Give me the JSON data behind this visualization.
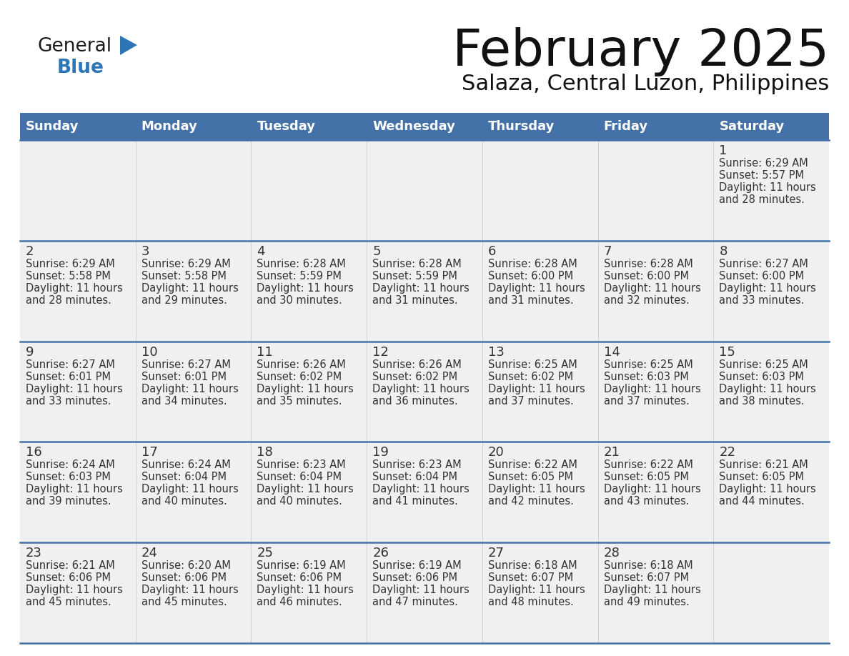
{
  "title": "February 2025",
  "subtitle": "Salaza, Central Luzon, Philippines",
  "days_of_week": [
    "Sunday",
    "Monday",
    "Tuesday",
    "Wednesday",
    "Thursday",
    "Friday",
    "Saturday"
  ],
  "header_bg": "#4472a8",
  "header_text": "#ffffff",
  "row_bg": "#f0f0f0",
  "separator_color": "#4472a8",
  "text_color": "#333333",
  "day_number_color": "#333333",
  "calendar_data": [
    {
      "day": 1,
      "col": 6,
      "row": 0,
      "sunrise": "6:29 AM",
      "sunset": "5:57 PM",
      "daylight": "11 hours and 28 minutes."
    },
    {
      "day": 2,
      "col": 0,
      "row": 1,
      "sunrise": "6:29 AM",
      "sunset": "5:58 PM",
      "daylight": "11 hours and 28 minutes."
    },
    {
      "day": 3,
      "col": 1,
      "row": 1,
      "sunrise": "6:29 AM",
      "sunset": "5:58 PM",
      "daylight": "11 hours and 29 minutes."
    },
    {
      "day": 4,
      "col": 2,
      "row": 1,
      "sunrise": "6:28 AM",
      "sunset": "5:59 PM",
      "daylight": "11 hours and 30 minutes."
    },
    {
      "day": 5,
      "col": 3,
      "row": 1,
      "sunrise": "6:28 AM",
      "sunset": "5:59 PM",
      "daylight": "11 hours and 31 minutes."
    },
    {
      "day": 6,
      "col": 4,
      "row": 1,
      "sunrise": "6:28 AM",
      "sunset": "6:00 PM",
      "daylight": "11 hours and 31 minutes."
    },
    {
      "day": 7,
      "col": 5,
      "row": 1,
      "sunrise": "6:28 AM",
      "sunset": "6:00 PM",
      "daylight": "11 hours and 32 minutes."
    },
    {
      "day": 8,
      "col": 6,
      "row": 1,
      "sunrise": "6:27 AM",
      "sunset": "6:00 PM",
      "daylight": "11 hours and 33 minutes."
    },
    {
      "day": 9,
      "col": 0,
      "row": 2,
      "sunrise": "6:27 AM",
      "sunset": "6:01 PM",
      "daylight": "11 hours and 33 minutes."
    },
    {
      "day": 10,
      "col": 1,
      "row": 2,
      "sunrise": "6:27 AM",
      "sunset": "6:01 PM",
      "daylight": "11 hours and 34 minutes."
    },
    {
      "day": 11,
      "col": 2,
      "row": 2,
      "sunrise": "6:26 AM",
      "sunset": "6:02 PM",
      "daylight": "11 hours and 35 minutes."
    },
    {
      "day": 12,
      "col": 3,
      "row": 2,
      "sunrise": "6:26 AM",
      "sunset": "6:02 PM",
      "daylight": "11 hours and 36 minutes."
    },
    {
      "day": 13,
      "col": 4,
      "row": 2,
      "sunrise": "6:25 AM",
      "sunset": "6:02 PM",
      "daylight": "11 hours and 37 minutes."
    },
    {
      "day": 14,
      "col": 5,
      "row": 2,
      "sunrise": "6:25 AM",
      "sunset": "6:03 PM",
      "daylight": "11 hours and 37 minutes."
    },
    {
      "day": 15,
      "col": 6,
      "row": 2,
      "sunrise": "6:25 AM",
      "sunset": "6:03 PM",
      "daylight": "11 hours and 38 minutes."
    },
    {
      "day": 16,
      "col": 0,
      "row": 3,
      "sunrise": "6:24 AM",
      "sunset": "6:03 PM",
      "daylight": "11 hours and 39 minutes."
    },
    {
      "day": 17,
      "col": 1,
      "row": 3,
      "sunrise": "6:24 AM",
      "sunset": "6:04 PM",
      "daylight": "11 hours and 40 minutes."
    },
    {
      "day": 18,
      "col": 2,
      "row": 3,
      "sunrise": "6:23 AM",
      "sunset": "6:04 PM",
      "daylight": "11 hours and 40 minutes."
    },
    {
      "day": 19,
      "col": 3,
      "row": 3,
      "sunrise": "6:23 AM",
      "sunset": "6:04 PM",
      "daylight": "11 hours and 41 minutes."
    },
    {
      "day": 20,
      "col": 4,
      "row": 3,
      "sunrise": "6:22 AM",
      "sunset": "6:05 PM",
      "daylight": "11 hours and 42 minutes."
    },
    {
      "day": 21,
      "col": 5,
      "row": 3,
      "sunrise": "6:22 AM",
      "sunset": "6:05 PM",
      "daylight": "11 hours and 43 minutes."
    },
    {
      "day": 22,
      "col": 6,
      "row": 3,
      "sunrise": "6:21 AM",
      "sunset": "6:05 PM",
      "daylight": "11 hours and 44 minutes."
    },
    {
      "day": 23,
      "col": 0,
      "row": 4,
      "sunrise": "6:21 AM",
      "sunset": "6:06 PM",
      "daylight": "11 hours and 45 minutes."
    },
    {
      "day": 24,
      "col": 1,
      "row": 4,
      "sunrise": "6:20 AM",
      "sunset": "6:06 PM",
      "daylight": "11 hours and 45 minutes."
    },
    {
      "day": 25,
      "col": 2,
      "row": 4,
      "sunrise": "6:19 AM",
      "sunset": "6:06 PM",
      "daylight": "11 hours and 46 minutes."
    },
    {
      "day": 26,
      "col": 3,
      "row": 4,
      "sunrise": "6:19 AM",
      "sunset": "6:06 PM",
      "daylight": "11 hours and 47 minutes."
    },
    {
      "day": 27,
      "col": 4,
      "row": 4,
      "sunrise": "6:18 AM",
      "sunset": "6:07 PM",
      "daylight": "11 hours and 48 minutes."
    },
    {
      "day": 28,
      "col": 5,
      "row": 4,
      "sunrise": "6:18 AM",
      "sunset": "6:07 PM",
      "daylight": "11 hours and 49 minutes."
    }
  ],
  "logo_general_color": "#1a1a1a",
  "logo_blue_color": "#2e75b6",
  "logo_triangle_color": "#2e75b6",
  "n_data_rows": 5
}
